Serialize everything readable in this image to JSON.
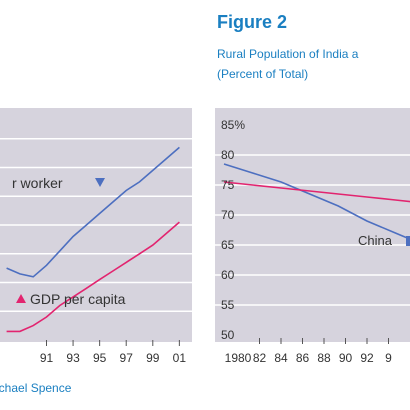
{
  "left_panel": {
    "source_text": "ichael Spence",
    "annotations": {
      "worker": "r worker",
      "gdp": "GDP per capita"
    }
  },
  "right_panel": {
    "figure_label": "Figure 2",
    "title_line1": "Rural Population of India a",
    "title_line2": "(Percent of Total)",
    "annotation_china": "China"
  },
  "colors": {
    "panel_bg": "#d6d3dd",
    "grid": "#ffffff",
    "blue": "#4d6fc0",
    "pink": "#e2246f",
    "figure_label": "#1a7fc1",
    "text": "#333333"
  },
  "chart_data": [
    {
      "type": "line",
      "title": "",
      "xlabel": "",
      "ylabel": "",
      "x_tick_labels": [
        "91",
        "93",
        "95",
        "97",
        "99",
        "01"
      ],
      "x": [
        1988,
        1989,
        1990,
        1991,
        1992,
        1993,
        1994,
        1995,
        1996,
        1997,
        1998,
        1999,
        2000,
        2001
      ],
      "xlim": [
        1987.5,
        2001.5
      ],
      "ylim": [
        0,
        8
      ],
      "grid": true,
      "series": [
        {
          "values": [
            2.5,
            2.3,
            2.2,
            2.6,
            3.1,
            3.6,
            4.0,
            4.4,
            4.8,
            5.2,
            5.5,
            5.9,
            6.3,
            6.7
          ]
        },
        {
          "values": [
            0.3,
            0.3,
            0.5,
            0.8,
            1.2,
            1.5,
            1.8,
            2.1,
            2.4,
            2.7,
            3.0,
            3.3,
            3.7,
            4.1
          ]
        }
      ]
    },
    {
      "type": "line",
      "title": "Rural Population of India a",
      "subtitle": "(Percent of Total)",
      "xlabel": "",
      "ylabel": "",
      "x_tick_labels": [
        "1980",
        "82",
        "84",
        "86",
        "88",
        "90",
        "92",
        "9"
      ],
      "y_tick_labels": [
        "85%",
        "80",
        "75",
        "70",
        "65",
        "60",
        "55",
        "50"
      ],
      "x": [
        1980,
        1982,
        1984,
        1986,
        1988,
        1990,
        1992,
        1994
      ],
      "xlim": [
        1980,
        1994
      ],
      "ylim": [
        50,
        85
      ],
      "grid": true,
      "series": [
        {
          "name": "China",
          "values": [
            78.5,
            77,
            75.5,
            73.5,
            71.5,
            69,
            67,
            65
          ]
        },
        {
          "values": [
            75.5,
            75,
            74.5,
            74,
            73.5,
            73,
            72.5,
            72
          ]
        }
      ]
    }
  ]
}
